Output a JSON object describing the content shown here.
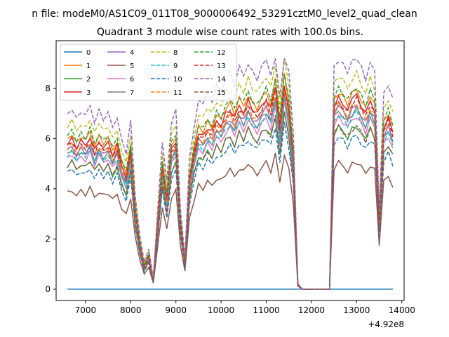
{
  "chart_data": {
    "type": "line",
    "suptitle": "n file: modeM0/AS1C09_011T08_9000006492_53291cztM0_level2_quad_clean",
    "title": "Quadrant 3 module wise count rates with 100.0s bins.",
    "xlabel": "",
    "ylabel": "",
    "x_offset_label": "+4.92e8",
    "xlim": [
      6350,
      14050
    ],
    "ylim": [
      -0.45,
      9.9
    ],
    "x_ticks": [
      7000,
      8000,
      9000,
      10000,
      11000,
      12000,
      13000,
      14000
    ],
    "x_tick_labels": [
      "7000",
      "8000",
      "9000",
      "10000",
      "11000",
      "12000",
      "13000",
      "14000"
    ],
    "y_ticks": [
      0,
      2,
      4,
      6,
      8
    ],
    "y_tick_labels": [
      "0",
      "2",
      "4",
      "6",
      "8"
    ],
    "grid": false,
    "legend_position": "top-left",
    "legend_columns": 4,
    "series": [
      {
        "name": "0",
        "color": "#1f77b4",
        "dashed": false
      },
      {
        "name": "1",
        "color": "#ff7f0e",
        "dashed": false
      },
      {
        "name": "2",
        "color": "#2ca02c",
        "dashed": false
      },
      {
        "name": "3",
        "color": "#d62728",
        "dashed": false
      },
      {
        "name": "4",
        "color": "#9467bd",
        "dashed": false
      },
      {
        "name": "5",
        "color": "#8c564b",
        "dashed": false
      },
      {
        "name": "6",
        "color": "#e377c2",
        "dashed": false
      },
      {
        "name": "7",
        "color": "#7f7f7f",
        "dashed": false
      },
      {
        "name": "8",
        "color": "#bcbd22",
        "dashed": true
      },
      {
        "name": "9",
        "color": "#17becf",
        "dashed": true
      },
      {
        "name": "10",
        "color": "#1f77b4",
        "dashed": true
      },
      {
        "name": "11",
        "color": "#ff7f0e",
        "dashed": true
      },
      {
        "name": "12",
        "color": "#2ca02c",
        "dashed": true
      },
      {
        "name": "13",
        "color": "#d62728",
        "dashed": true
      },
      {
        "name": "14",
        "color": "#9467bd",
        "dashed": true
      },
      {
        "name": "15",
        "color": "#8c564b",
        "dashed": true
      }
    ]
  }
}
